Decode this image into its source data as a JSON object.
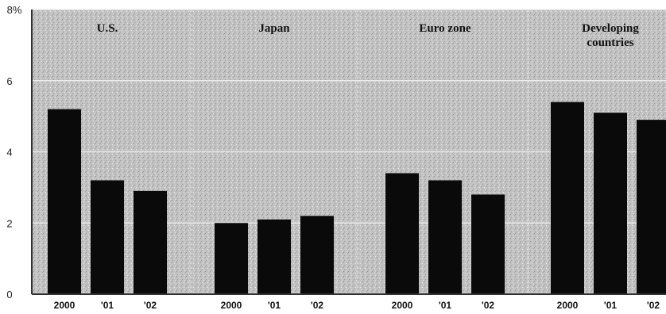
{
  "chart_data": {
    "type": "bar",
    "y_unit_label": "8%",
    "yticks": [
      "0",
      "2",
      "4",
      "6"
    ],
    "ylim": [
      0,
      8
    ],
    "grid": true,
    "groups": [
      {
        "title_lines": [
          "U.S."
        ],
        "categories": [
          "2000",
          "'01",
          "'02"
        ],
        "values": [
          5.2,
          3.2,
          2.9
        ]
      },
      {
        "title_lines": [
          "Japan"
        ],
        "categories": [
          "2000",
          "'01",
          "'02"
        ],
        "values": [
          2.0,
          2.1,
          2.2
        ]
      },
      {
        "title_lines": [
          "Euro zone"
        ],
        "categories": [
          "2000",
          "'01",
          "'02"
        ],
        "values": [
          3.4,
          3.2,
          2.8
        ]
      },
      {
        "title_lines": [
          "Developing",
          "countries"
        ],
        "categories": [
          "2000",
          "'01",
          "'02"
        ],
        "values": [
          5.4,
          5.1,
          4.9
        ]
      }
    ],
    "colors": {
      "bar": "#0a0a0a",
      "background": "#bdbdbd",
      "grid": "#ededed",
      "axis": "#333333"
    }
  }
}
